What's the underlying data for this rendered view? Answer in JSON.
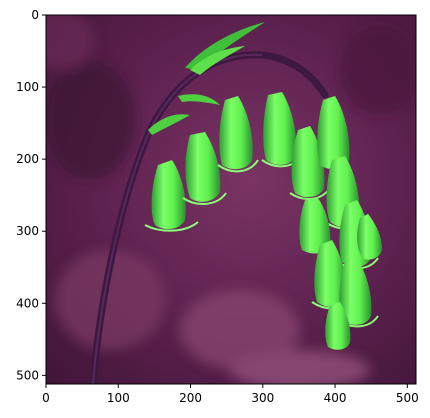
{
  "chart_data": {
    "type": "image",
    "title": "",
    "xlabel": "",
    "ylabel": "",
    "xlim": [
      0,
      512
    ],
    "ylim": [
      512,
      0
    ],
    "x_ticks": [
      {
        "value": 0,
        "label": "0"
      },
      {
        "value": 100,
        "label": "100"
      },
      {
        "value": 200,
        "label": "200"
      },
      {
        "value": 300,
        "label": "300"
      },
      {
        "value": 400,
        "label": "400"
      },
      {
        "value": 500,
        "label": "500"
      }
    ],
    "y_ticks": [
      {
        "value": 0,
        "label": "0"
      },
      {
        "value": 100,
        "label": "100"
      },
      {
        "value": 200,
        "label": "200"
      },
      {
        "value": 300,
        "label": "300"
      },
      {
        "value": 400,
        "label": "400"
      },
      {
        "value": 500,
        "label": "500"
      }
    ],
    "image_content": "bluebell-flower-stem-with-bright-green-drooping-bells-on-purple-background",
    "grid": false
  },
  "colors": {
    "background_dark": "#4a1a3c",
    "background_mid": "#6e2a5a",
    "background_light": "#8a4a70",
    "stem": "#4a1f4a",
    "bell_bright": "#6cff5a",
    "bell_mid": "#3fd83a",
    "bell_dark": "#1f8a28"
  }
}
